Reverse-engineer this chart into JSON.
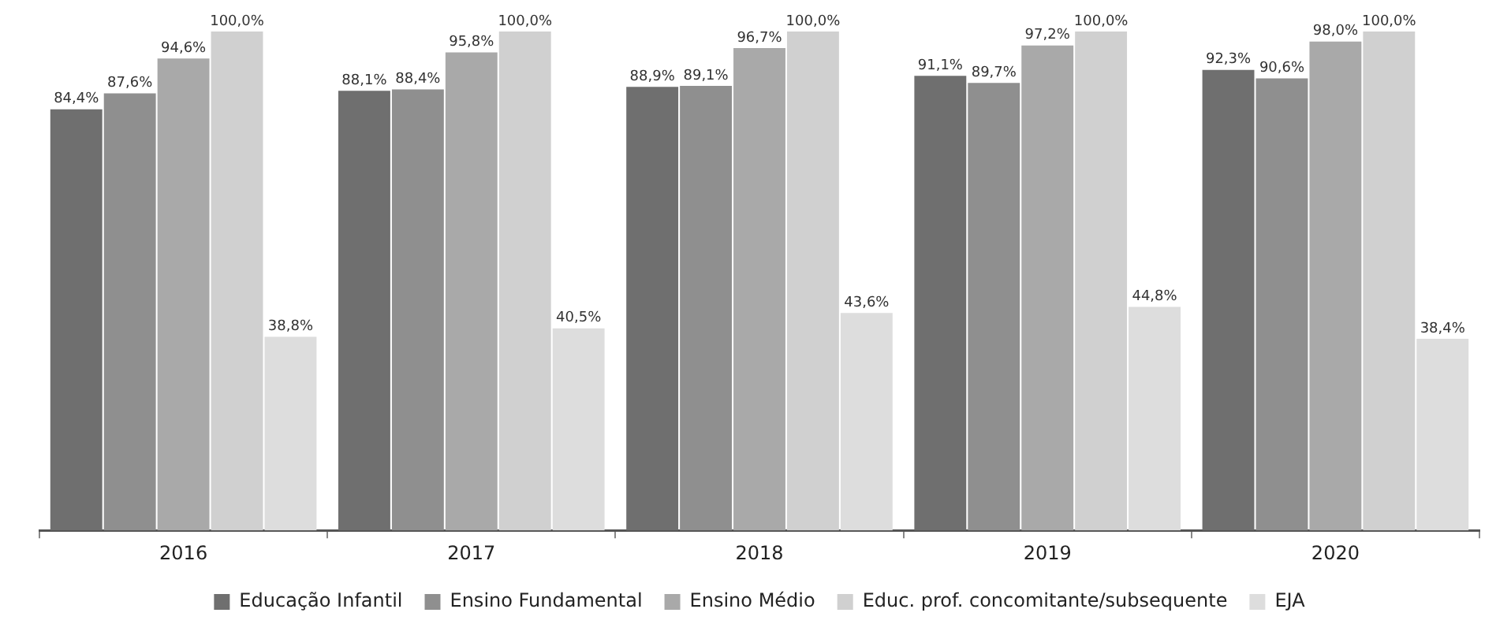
{
  "chart_data": {
    "type": "bar",
    "categories": [
      "2016",
      "2017",
      "2018",
      "2019",
      "2020"
    ],
    "series": [
      {
        "name": "Educação Infantil",
        "color": "#6f6f6f",
        "values": [
          84.4,
          88.1,
          88.9,
          91.1,
          92.3
        ],
        "value_labels": [
          "84,4%",
          "88,1%",
          "88,9%",
          "91,1%",
          "92,3%"
        ]
      },
      {
        "name": "Ensino Fundamental",
        "color": "#8f8f8f",
        "values": [
          87.6,
          88.4,
          89.1,
          89.7,
          90.6
        ],
        "value_labels": [
          "87,6%",
          "88,4%",
          "89,1%",
          "89,7%",
          "90,6%"
        ]
      },
      {
        "name": "Ensino Médio",
        "color": "#a9a9a9",
        "values": [
          94.6,
          95.8,
          96.7,
          97.2,
          98.0
        ],
        "value_labels": [
          "94,6%",
          "95,8%",
          "96,7%",
          "97,2%",
          "98,0%"
        ]
      },
      {
        "name": "Educ. prof. concomitante/subsequente",
        "color": "#d0d0d0",
        "values": [
          100.0,
          100.0,
          100.0,
          100.0,
          100.0
        ],
        "value_labels": [
          "100,0%",
          "100,0%",
          "100,0%",
          "100,0%",
          "100,0%"
        ]
      },
      {
        "name": "EJA",
        "color": "#dddddd",
        "values": [
          38.8,
          40.5,
          43.6,
          44.8,
          38.4
        ],
        "value_labels": [
          "38,8%",
          "40,5%",
          "43,6%",
          "44,8%",
          "38,4%"
        ]
      }
    ],
    "legend": "bottom",
    "grid": false
  }
}
